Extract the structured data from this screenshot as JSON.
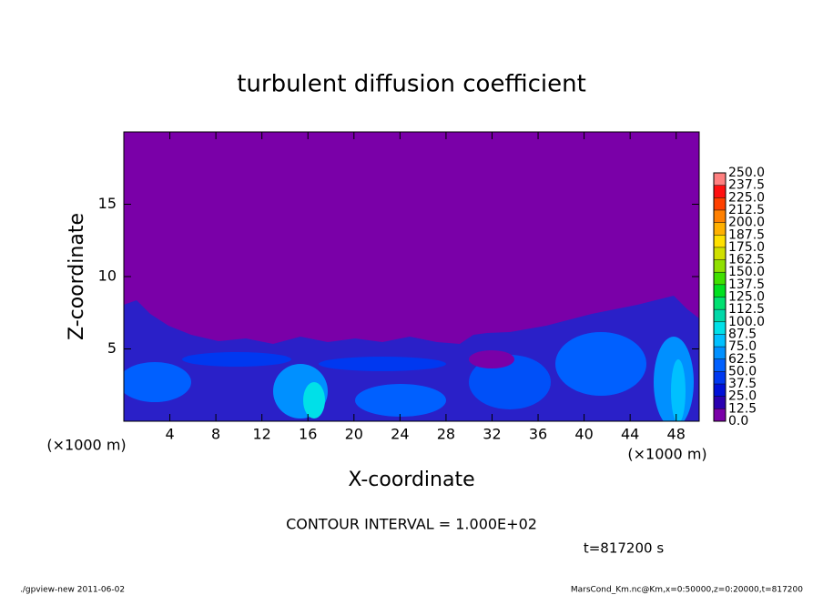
{
  "chart_data": {
    "type": "contour",
    "title": "turbulent diffusion coefficient",
    "x_label": "X-coordinate",
    "y_label": "Z-coordinate",
    "x_unit_label": "(×1000 m)",
    "xlim": [
      0,
      50
    ],
    "xticks": [
      4,
      8,
      12,
      16,
      20,
      24,
      28,
      32,
      36,
      40,
      44,
      48
    ],
    "ylim": [
      0,
      20
    ],
    "yticks": [
      5,
      10,
      15
    ],
    "colorbar": {
      "levels": [
        {
          "value": 0,
          "label": "0.0"
        },
        12.5,
        {
          "value": 25,
          "label": "25.0"
        },
        37.5,
        {
          "value": 50,
          "label": "50.0"
        },
        62.5,
        {
          "value": 75,
          "label": "75.0"
        },
        87.5,
        {
          "value": 100,
          "label": "100.0"
        },
        112.5,
        {
          "value": 125,
          "label": "125.0"
        },
        137.5,
        {
          "value": 150,
          "label": "150.0"
        },
        162.5,
        {
          "value": 175,
          "label": "175.0"
        },
        187.5,
        {
          "value": 200,
          "label": "200.0"
        },
        212.5,
        {
          "value": 225,
          "label": "225.0"
        },
        237.5,
        {
          "value": 250,
          "label": "250.0"
        }
      ],
      "colors": [
        "#7a00a8",
        "#2a00b0",
        "#0010d8",
        "#0038f0",
        "#0060ff",
        "#0090ff",
        "#00c0ff",
        "#00e0e8",
        "#00d8a8",
        "#00e070",
        "#00e020",
        "#40e000",
        "#90e000",
        "#d0e000",
        "#ffe000",
        "#ffb000",
        "#ff8000",
        "#ff4000",
        "#ff1010",
        "#ff8080"
      ]
    },
    "contour_interval": "CONTOUR INTERVAL = 1.000E+02",
    "time_label": "t=817200 s",
    "footer_left": "./gpview-new   2011-06-02",
    "footer_right": "MarsCond_Km.nc@Km,x=0:50000,z=0:20000,t=817200"
  }
}
